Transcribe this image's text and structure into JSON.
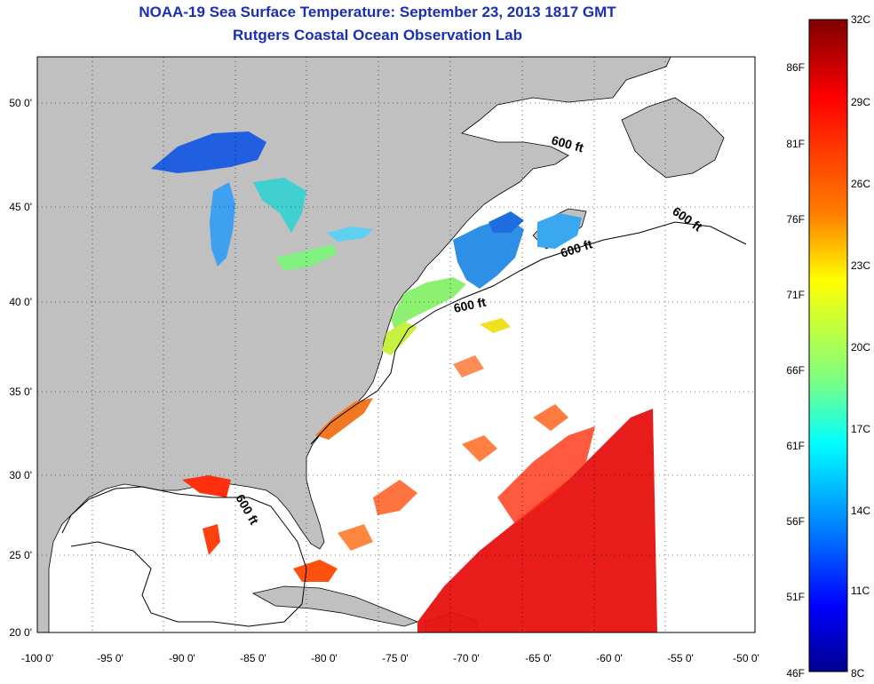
{
  "title": "NOAA-19 Sea Surface Temperature:  September 23, 2013 1817 GMT",
  "subtitle": "Rutgers Coastal Ocean Observation Lab",
  "map": {
    "lon_ticks": [
      "-100 0'",
      "-95 0'",
      "-90 0'",
      "-85 0'",
      "-80 0'",
      "-75 0'",
      "-70 0'",
      "-65 0'",
      "-60 0'",
      "-55 0'",
      "-50 0'"
    ],
    "lat_ticks": [
      "50 0'",
      "45 0'",
      "40 0'",
      "35 0'",
      "30 0'",
      "25 0'",
      "20 0'"
    ],
    "contour_label": "600 ft",
    "land_color": "#c0c0c0",
    "ocean_color": "#ffffff"
  },
  "colorbar": {
    "celsius_labels": [
      "32C",
      "29C",
      "26C",
      "23C",
      "20C",
      "17C",
      "14C",
      "11C",
      "8C"
    ],
    "fahrenheit_labels": [
      "86F",
      "81F",
      "76F",
      "71F",
      "66F",
      "61F",
      "56F",
      "51F",
      "46F"
    ],
    "stops": [
      "#800000",
      "#ff0000",
      "#ff8000",
      "#ffff00",
      "#80ff80",
      "#00ffff",
      "#0080ff",
      "#0000ff",
      "#00008f"
    ]
  }
}
